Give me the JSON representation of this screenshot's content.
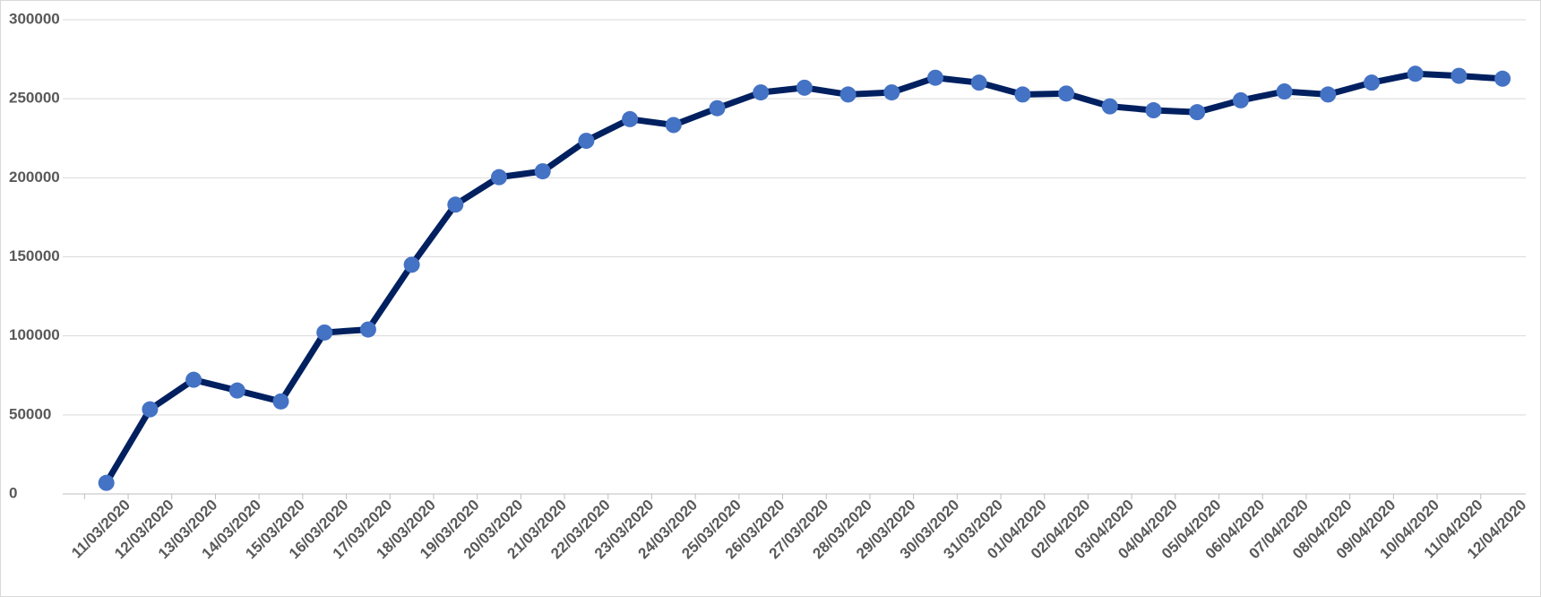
{
  "chart_data": {
    "type": "line",
    "categories": [
      "11/03/2020",
      "12/03/2020",
      "13/03/2020",
      "14/03/2020",
      "15/03/2020",
      "16/03/2020",
      "17/03/2020",
      "18/03/2020",
      "19/03/2020",
      "20/03/2020",
      "21/03/2020",
      "22/03/2020",
      "23/03/2020",
      "24/03/2020",
      "25/03/2020",
      "26/03/2020",
      "27/03/2020",
      "28/03/2020",
      "29/03/2020",
      "30/03/2020",
      "31/03/2020",
      "01/04/2020",
      "02/04/2020",
      "03/04/2020",
      "04/04/2020",
      "05/04/2020",
      "06/04/2020",
      "07/04/2020",
      "08/04/2020",
      "09/04/2020",
      "10/04/2020",
      "11/04/2020",
      "12/04/2020"
    ],
    "values": [
      7000,
      53500,
      72200,
      65400,
      58500,
      102100,
      104000,
      145000,
      183000,
      200400,
      204100,
      223400,
      237100,
      233400,
      244000,
      254000,
      257000,
      252700,
      254000,
      263300,
      260200,
      252700,
      253300,
      245200,
      242700,
      241500,
      249000,
      254600,
      252700,
      260200,
      265800,
      264500,
      262700
    ],
    "line_color": "#002060",
    "marker_color": "#4472c4",
    "ylim": [
      0,
      300000
    ],
    "yticks": [
      0,
      50000,
      100000,
      150000,
      200000,
      250000,
      300000
    ],
    "grid": true
  }
}
